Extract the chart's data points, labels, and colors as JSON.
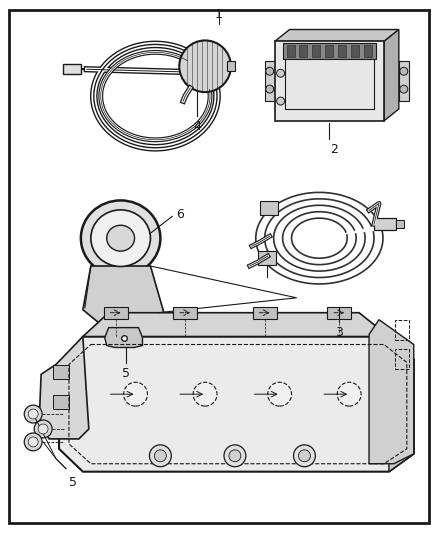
{
  "bg_color": "#ffffff",
  "border_color": "#1a1a1a",
  "line_color": "#1a1a1a",
  "text_color": "#1a1a1a",
  "fig_width": 4.38,
  "fig_height": 5.33,
  "dpi": 100,
  "label_1": "1",
  "label_2": "2",
  "label_3": "3",
  "label_4": "4",
  "label_5": "5",
  "label_6": "6"
}
